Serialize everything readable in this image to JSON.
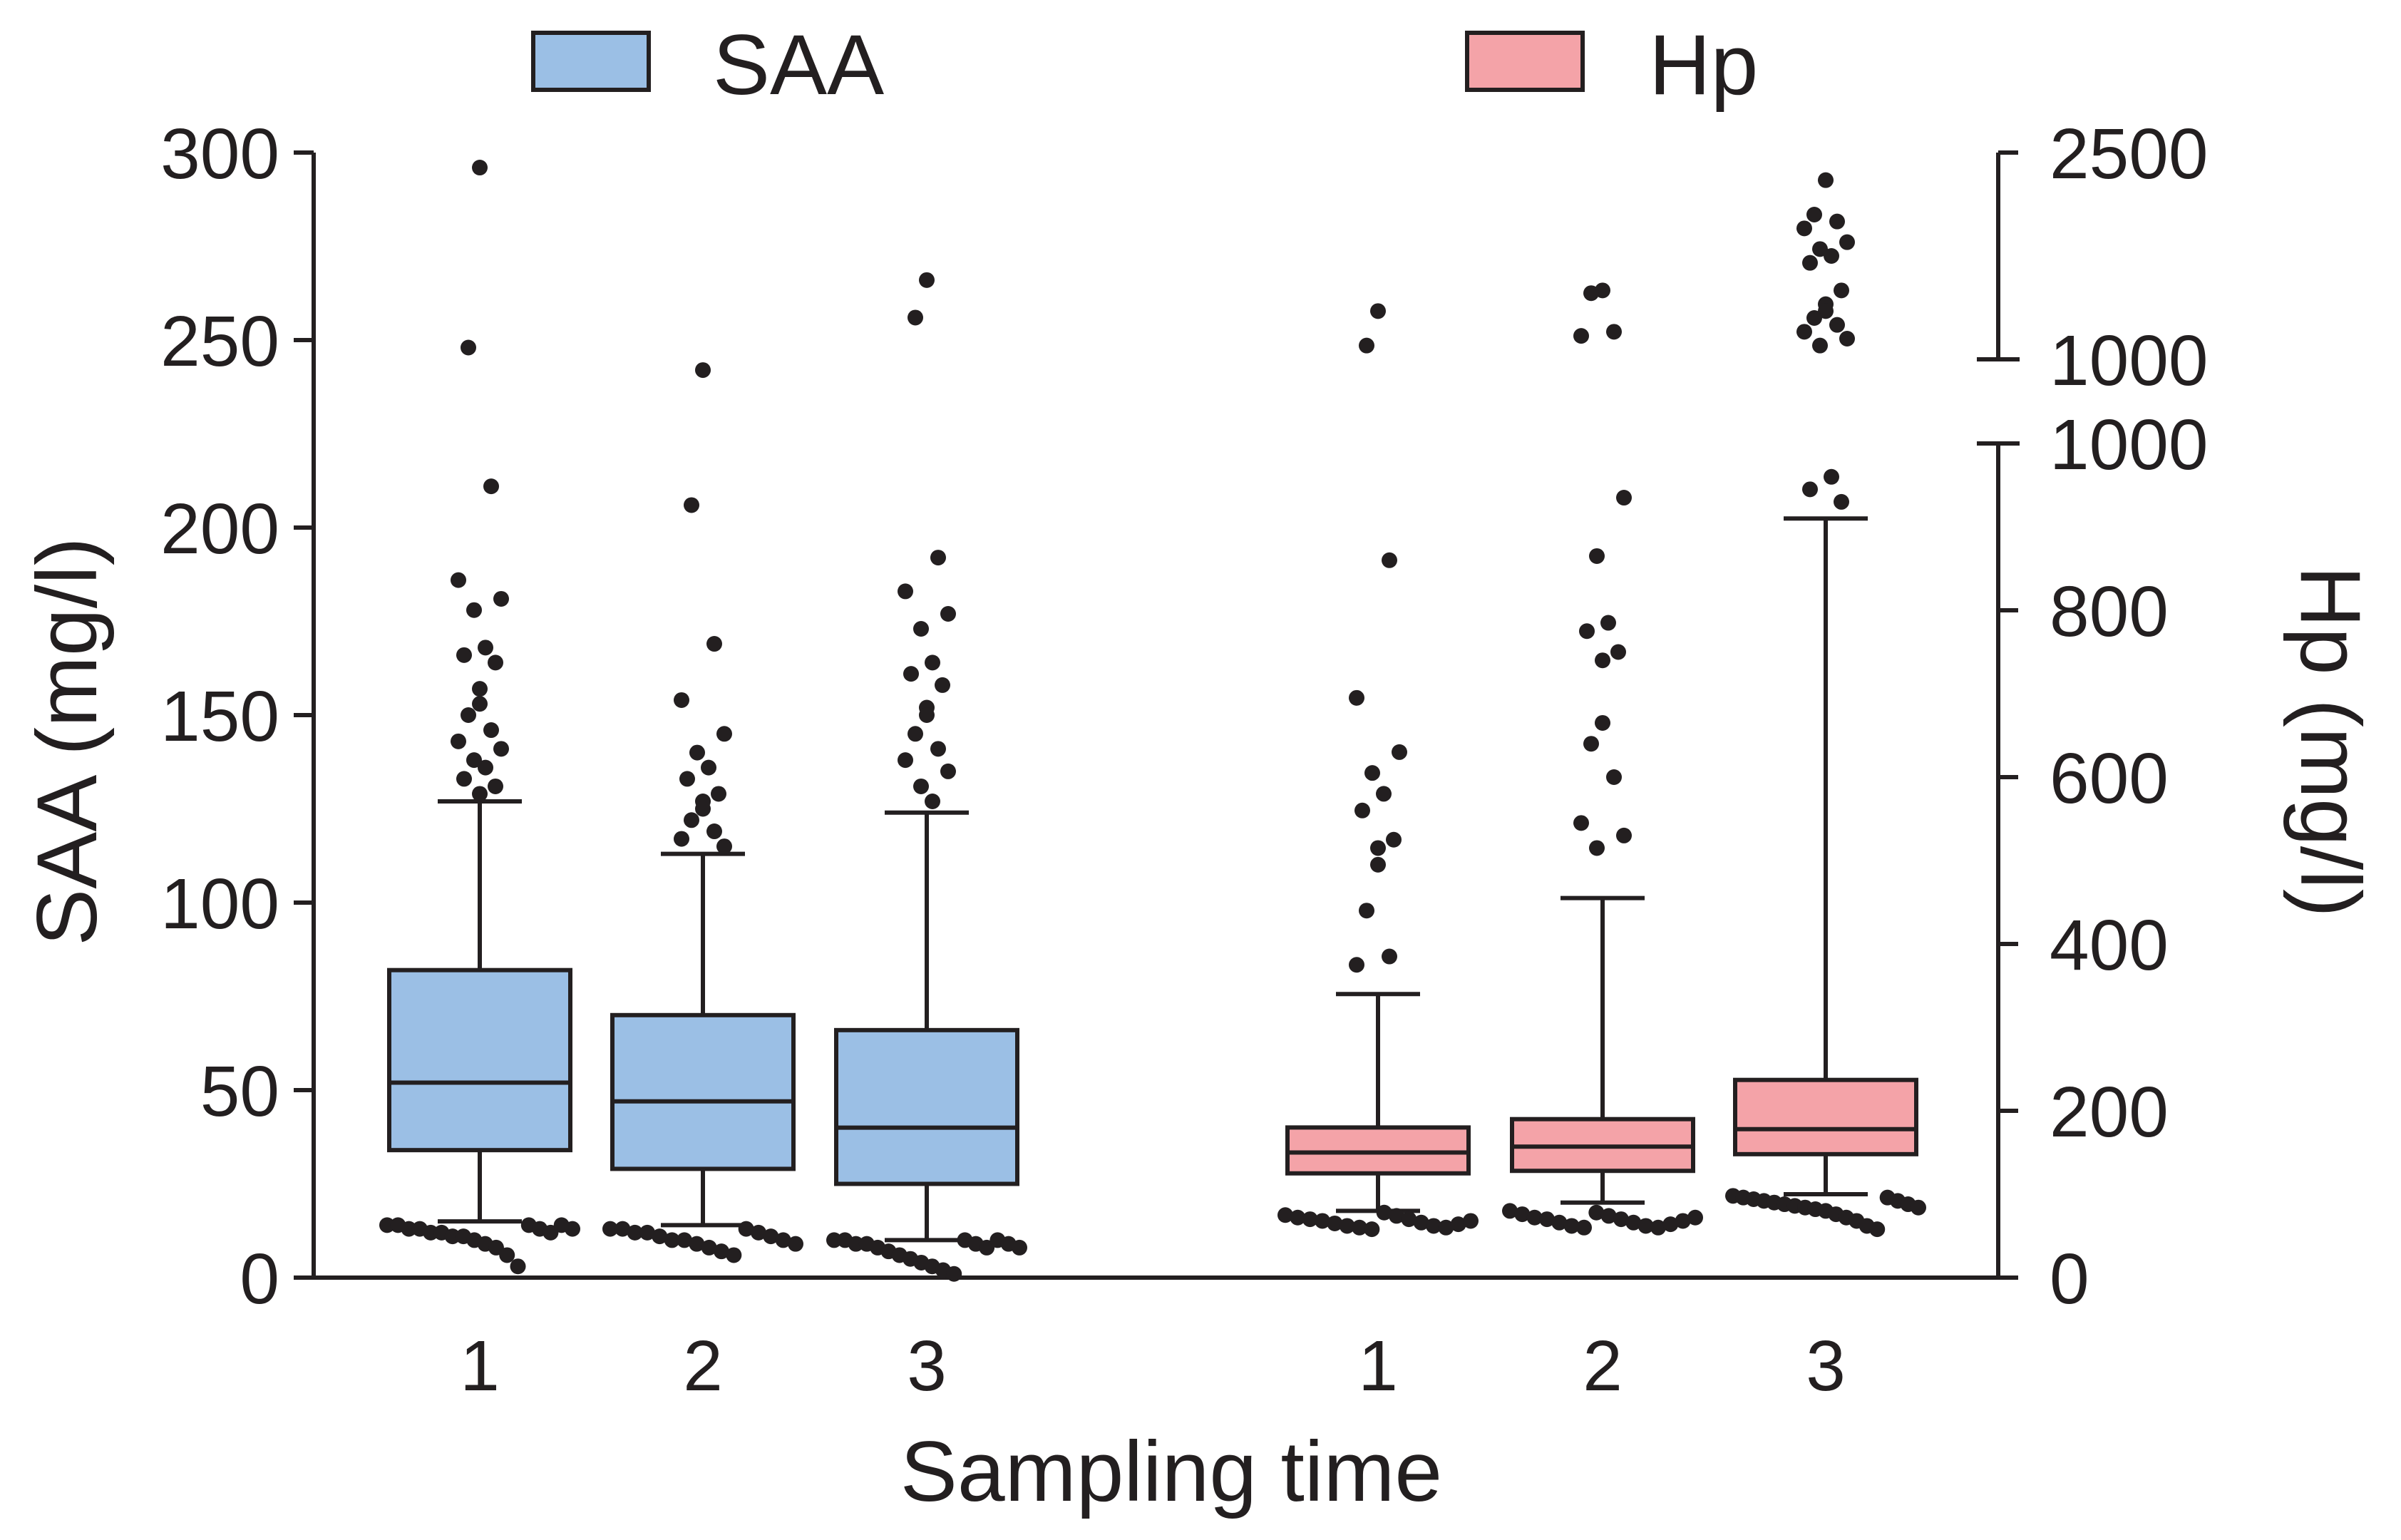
{
  "chart_data": {
    "type": "box",
    "xlabel": "Sampling time",
    "left_axis": {
      "label": "SAA (mg/l)",
      "range": [
        0,
        300
      ],
      "ticks": [
        0,
        50,
        100,
        150,
        200,
        250,
        300
      ]
    },
    "right_axis": {
      "label": "Hp (mg/l)",
      "lower_segment": {
        "range": [
          0,
          1000
        ],
        "ticks": [
          0,
          200,
          400,
          600,
          800,
          1000
        ]
      },
      "upper_segment": {
        "range": [
          1000,
          2500
        ],
        "ticks": [
          1000,
          2500
        ]
      },
      "break_between": [
        1000,
        1000
      ]
    },
    "legend": [
      {
        "name": "SAA",
        "color": "#9bbfe5"
      },
      {
        "name": "Hp",
        "color": "#f4a3a8"
      }
    ],
    "colors": {
      "axis": "#231f20",
      "outlier": "#231f20"
    },
    "series": [
      {
        "name": "SAA",
        "axis": "left",
        "color": "#9bbfe5",
        "groups": [
          {
            "label": "1",
            "whisker_low": 15,
            "q1": 34,
            "median": 52,
            "q3": 82,
            "whisker_high": 127,
            "outliers_high": [
              296,
              248,
              211,
              186,
              181,
              178,
              168,
              166,
              164,
              157,
              153,
              150,
              146,
              143,
              141,
              138,
              136,
              133,
              131,
              129
            ],
            "outliers_low": [
              14,
              14,
              13,
              13,
              12,
              12,
              11,
              11,
              10,
              9,
              8,
              6,
              3,
              14,
              13,
              12,
              14,
              13
            ]
          },
          {
            "label": "2",
            "whisker_low": 14,
            "q1": 29,
            "median": 47,
            "q3": 70,
            "whisker_high": 113,
            "outliers_high": [
              242,
              206,
              169,
              154,
              145,
              140,
              136,
              133,
              129,
              127,
              125,
              122,
              119,
              117,
              115
            ],
            "outliers_low": [
              13,
              13,
              12,
              12,
              11,
              10,
              10,
              9,
              8,
              7,
              6,
              13,
              12,
              11,
              10,
              9
            ]
          },
          {
            "label": "3",
            "whisker_low": 10,
            "q1": 25,
            "median": 40,
            "q3": 66,
            "whisker_high": 124,
            "outliers_high": [
              266,
              256,
              192,
              183,
              177,
              173,
              164,
              161,
              158,
              152,
              150,
              145,
              141,
              138,
              135,
              131,
              127
            ],
            "outliers_low": [
              10,
              10,
              9,
              9,
              8,
              7,
              6,
              5,
              4,
              3,
              2,
              1,
              10,
              9,
              8,
              10,
              9,
              8
            ]
          }
        ]
      },
      {
        "name": "Hp",
        "axis": "right",
        "color": "#f4a3a8",
        "groups": [
          {
            "label": "1",
            "whisker_low": 80,
            "q1": 125,
            "median": 150,
            "q3": 180,
            "whisker_high": 340,
            "outliers_high": [
              1350,
              1100,
              860,
              695,
              630,
              605,
              580,
              560,
              525,
              515,
              495,
              440,
              385,
              375
            ],
            "outliers_low": [
              75,
              72,
              70,
              68,
              65,
              62,
              60,
              58,
              78,
              74,
              70,
              66,
              62,
              60,
              64,
              68
            ]
          },
          {
            "label": "2",
            "whisker_low": 90,
            "q1": 128,
            "median": 157,
            "q3": 190,
            "whisker_high": 455,
            "outliers_high": [
              1500,
              1480,
              1200,
              1170,
              935,
              865,
              785,
              775,
              750,
              740,
              665,
              640,
              600,
              545,
              530,
              515
            ],
            "outliers_low": [
              80,
              76,
              72,
              70,
              66,
              62,
              60,
              78,
              74,
              70,
              66,
              62,
              60,
              64,
              68,
              72
            ]
          },
          {
            "label": "3",
            "whisker_low": 100,
            "q1": 148,
            "median": 178,
            "q3": 237,
            "whisker_high": 910,
            "outliers_high": [
              2300,
              2050,
              2000,
              1950,
              1850,
              1800,
              1750,
              1700,
              1500,
              1400,
              1350,
              1300,
              1250,
              1200,
              1150,
              1100,
              960,
              945,
              930
            ],
            "outliers_low": [
              98,
              96,
              94,
              92,
              90,
              88,
              86,
              84,
              82,
              80,
              76,
              72,
              68,
              62,
              58,
              96,
              92,
              88,
              84
            ]
          }
        ]
      }
    ]
  }
}
